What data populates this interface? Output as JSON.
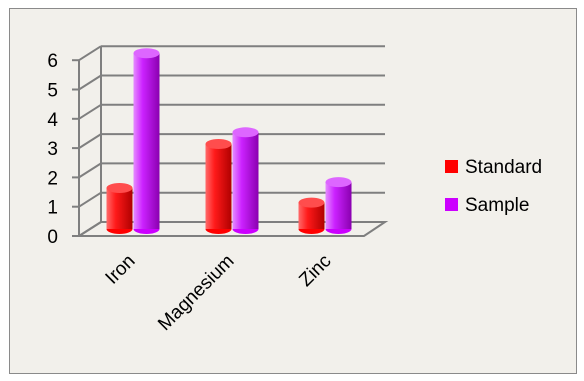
{
  "chart_data": {
    "type": "bar",
    "categories": [
      "Iron",
      "Magnesium",
      "Zinc"
    ],
    "series": [
      {
        "name": "Standard",
        "values": [
          1.4,
          2.9,
          0.9
        ],
        "color": "#ff0000"
      },
      {
        "name": "Sample",
        "values": [
          6.0,
          3.3,
          1.6
        ],
        "color": "#cc00ff"
      }
    ],
    "ylim": [
      0,
      6
    ],
    "yticks": [
      "0",
      "1",
      "2",
      "3",
      "4",
      "5",
      "6"
    ],
    "title": "",
    "xlabel": "",
    "ylabel": "",
    "grid": true,
    "legend_position": "right",
    "style": "3d-cylinder"
  }
}
